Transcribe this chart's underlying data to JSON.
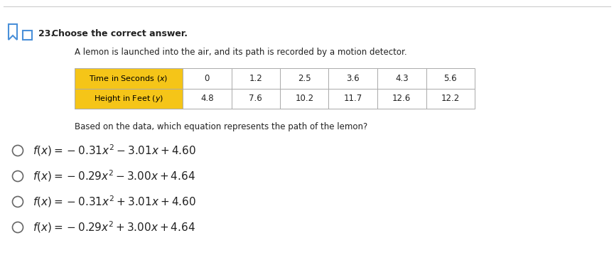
{
  "question_num": "23.",
  "question_label": "Choose the correct answer.",
  "problem_text": "A lemon is launched into the air, and its path is recorded by a motion detector.",
  "table_row1_label": "Time in Seconds (x)",
  "table_row2_label": "Height in Feet (y)",
  "table_row1_values": [
    "0",
    "1.2",
    "2.5",
    "3.6",
    "4.3",
    "5.6"
  ],
  "table_row2_values": [
    "4.8",
    "7.6",
    "10.2",
    "11.7",
    "12.6",
    "12.2"
  ],
  "follow_text": "Based on the data, which equation represents the path of the lemon?",
  "math_options": [
    "$f(x) = -0.31x^2 - 3.01x + 4.60$",
    "$f(x) = -0.29x^2 - 3.00x + 4.64$",
    "$f(x) = -0.31x^2 + 3.01x + 4.60$",
    "$f(x) = -0.29x^2 + 3.00x + 4.64$"
  ],
  "header_bg": "#F5C518",
  "header_text_color": "#000000",
  "table_border_color": "#aaaaaa",
  "bg_color": "#ffffff",
  "text_color": "#222222",
  "icon_color": "#4a90d9",
  "top_line_color": "#cccccc",
  "circle_color": "#666666"
}
